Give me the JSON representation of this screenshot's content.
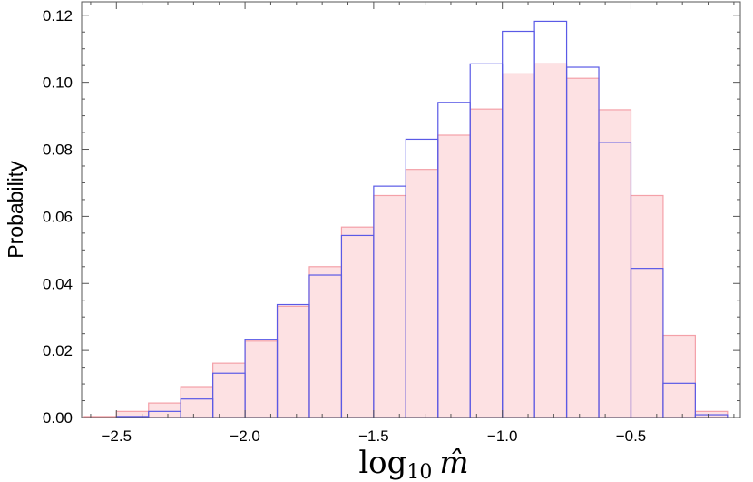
{
  "chart_data": {
    "type": "bar",
    "title": "",
    "xlabel": "log10 m̂",
    "xlabel_main": "log",
    "xlabel_sub": "10",
    "xlabel_var": "m̂",
    "ylabel": "Probability",
    "xlim": [
      -2.635,
      -0.075
    ],
    "ylim": [
      0,
      0.124
    ],
    "grid": false,
    "legend": "none",
    "x_ticks": [
      -2.5,
      -2.0,
      -1.5,
      -1.0,
      -0.5
    ],
    "x_tick_labels": [
      "−2.5",
      "−2.0",
      "−1.5",
      "−1.0",
      "−0.5"
    ],
    "y_ticks": [
      0,
      0.02,
      0.04,
      0.06,
      0.08,
      0.1,
      0.12
    ],
    "y_tick_labels": [
      "0.00",
      "0.02",
      "0.04",
      "0.06",
      "0.08",
      "0.10",
      "0.12"
    ],
    "bin_edges": [
      -2.625,
      -2.5,
      -2.375,
      -2.25,
      -2.125,
      -2.0,
      -1.875,
      -1.75,
      -1.625,
      -1.5,
      -1.375,
      -1.25,
      -1.125,
      -1.0,
      -0.875,
      -0.75,
      -0.625,
      -0.5,
      -0.375,
      -0.25,
      -0.125
    ],
    "series": [
      {
        "style": "filled",
        "color": "#f4a0a8",
        "fill": "#fde1e3",
        "values": [
          0.0003,
          0.0018,
          0.0043,
          0.0092,
          0.0162,
          0.0228,
          0.0332,
          0.045,
          0.0568,
          0.0662,
          0.074,
          0.0842,
          0.092,
          0.1025,
          0.1055,
          0.1012,
          0.0918,
          0.0662,
          0.0245,
          0.0018
        ]
      },
      {
        "style": "outline",
        "color": "#5a5ae6",
        "values": [
          0.0,
          0.0003,
          0.0018,
          0.0055,
          0.0132,
          0.0232,
          0.0337,
          0.0425,
          0.0543,
          0.069,
          0.083,
          0.094,
          0.1055,
          0.1152,
          0.1182,
          0.1045,
          0.082,
          0.0445,
          0.0102,
          0.0008
        ]
      }
    ]
  }
}
